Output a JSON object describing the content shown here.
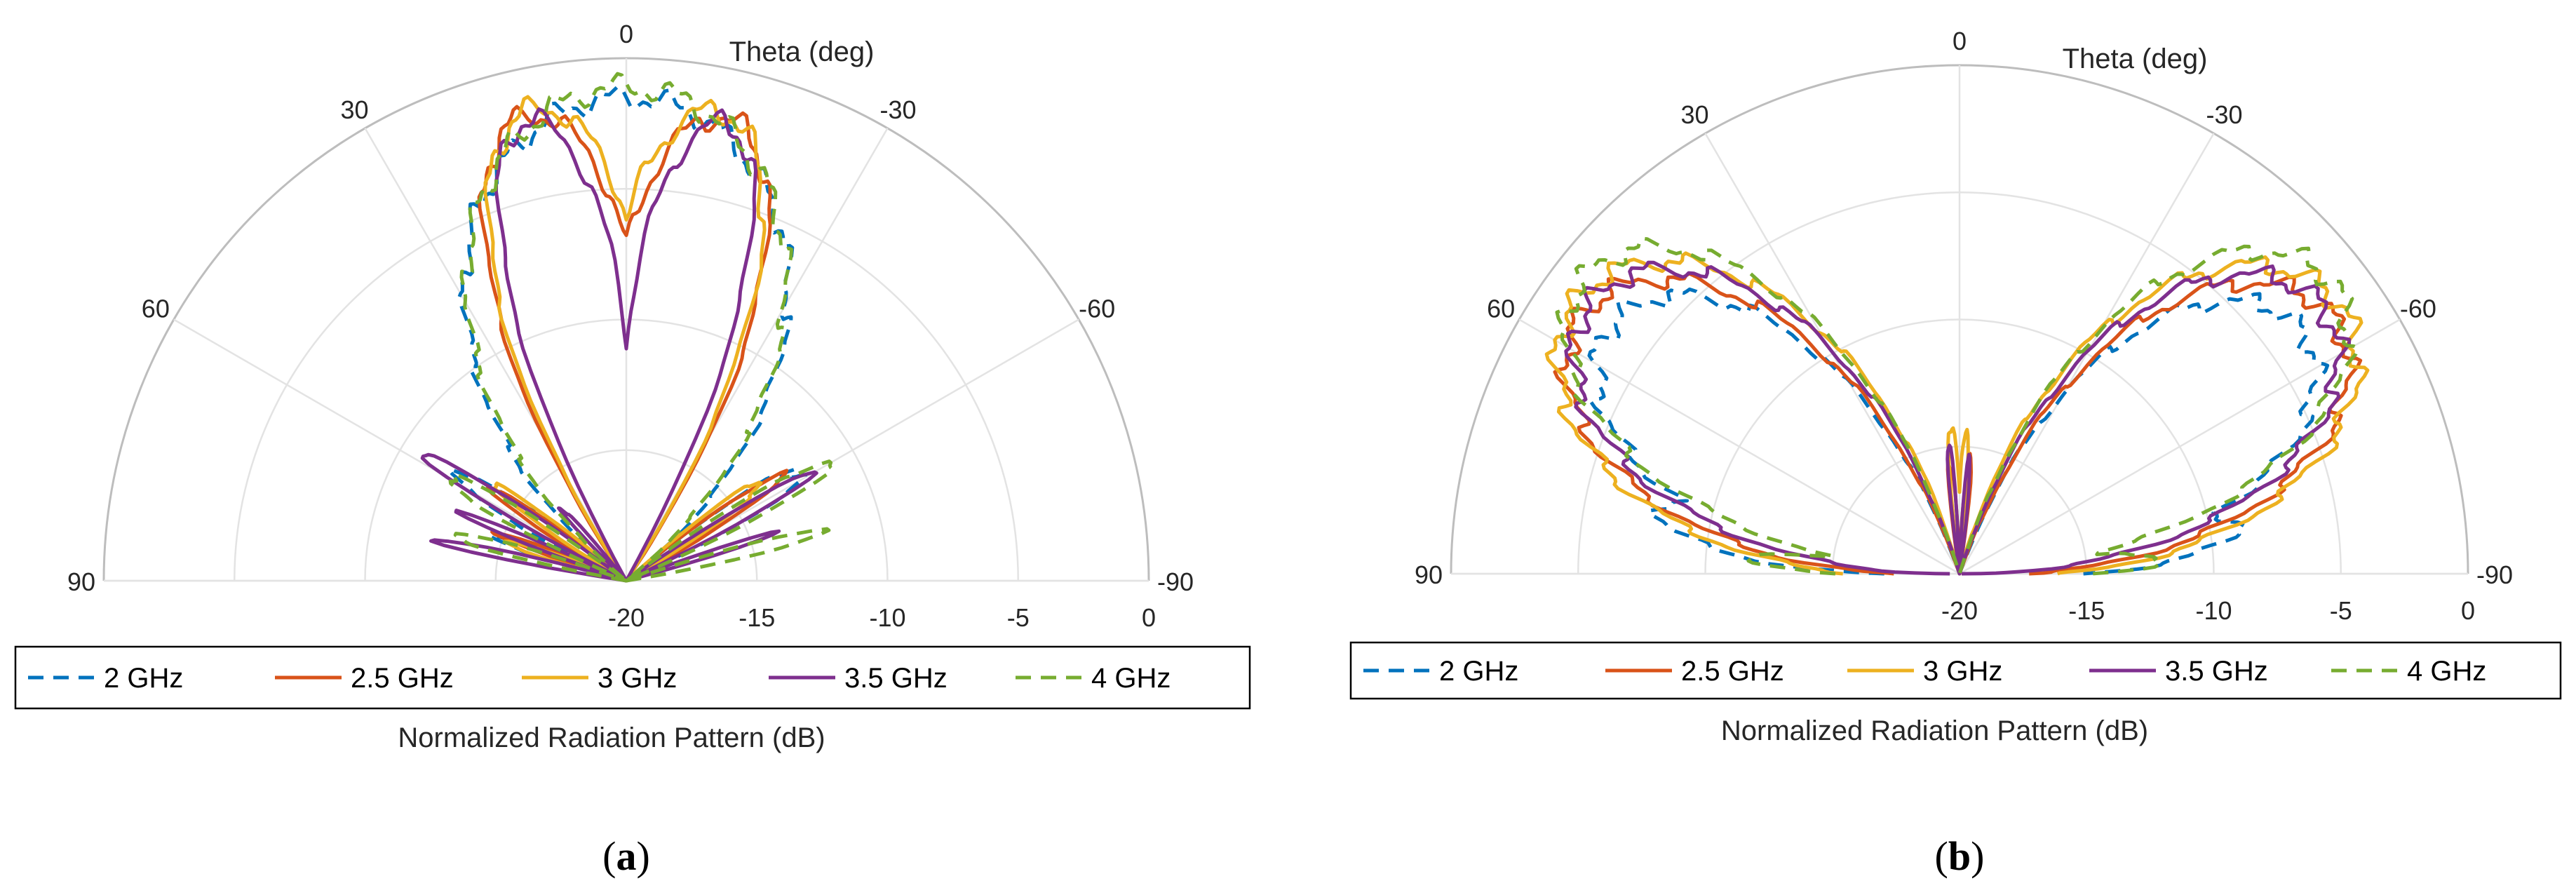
{
  "chart_data": [
    {
      "type": "polar",
      "panel_label": "a",
      "title": "",
      "theta_label": "Theta (deg)",
      "r_label": "Normalized Radiation Pattern (dB)",
      "theta_range": [
        -90,
        90
      ],
      "theta_ticks": [
        90,
        60,
        30,
        0,
        -30,
        -60,
        -90
      ],
      "r_range": [
        -20,
        0
      ],
      "r_ticks": [
        -20,
        -15,
        -10,
        -5,
        0
      ],
      "series": [
        {
          "name": "2 GHz",
          "color": "#0072BD",
          "dash": "dashed",
          "lobes": [
            {
              "center": 0,
              "width": 21,
              "peak": -1.5
            },
            {
              "center": 58,
              "width": 5,
              "peak": -12.5
            },
            {
              "center": -58,
              "width": 5,
              "peak": -12
            },
            {
              "center": 72,
              "width": 4,
              "peak": -15
            }
          ]
        },
        {
          "name": "2.5 GHz",
          "color": "#D95319",
          "dash": "solid",
          "lobes": [
            {
              "center": 12,
              "width": 9,
              "peak": -1.8
            },
            {
              "center": -12,
              "width": 9,
              "peak": -1.9
            },
            {
              "center": 56,
              "width": 4,
              "peak": -14
            },
            {
              "center": -56,
              "width": 4,
              "peak": -13
            },
            {
              "center": 70,
              "width": 3,
              "peak": -15
            }
          ]
        },
        {
          "name": "3 GHz",
          "color": "#EDB120",
          "dash": "solid",
          "lobes": [
            {
              "center": 11,
              "width": 9,
              "peak": -1.6
            },
            {
              "center": -11,
              "width": 9,
              "peak": -1.7
            },
            {
              "center": 54,
              "width": 4,
              "peak": -14
            },
            {
              "center": -54,
              "width": 4,
              "peak": -13.5
            },
            {
              "center": 72,
              "width": 3,
              "peak": -15
            }
          ]
        },
        {
          "name": "3.5 GHz",
          "color": "#7E2F8E",
          "dash": "solid",
          "lobes": [
            {
              "center": 12,
              "width": 7,
              "peak": -2
            },
            {
              "center": -12,
              "width": 7,
              "peak": -2.1
            },
            {
              "center": 1,
              "width": 2,
              "peak": -13
            },
            {
              "center": 42,
              "width": 3,
              "peak": -16
            },
            {
              "center": 58,
              "width": 3,
              "peak": -11
            },
            {
              "center": -60,
              "width": 3,
              "peak": -12
            },
            {
              "center": 68,
              "width": 2,
              "peak": -13
            },
            {
              "center": -72,
              "width": 2,
              "peak": -14
            },
            {
              "center": 78,
              "width": 2,
              "peak": -12.5
            }
          ]
        },
        {
          "name": "4 GHz",
          "color": "#77AC30",
          "dash": "dashed",
          "lobes": [
            {
              "center": 0,
              "width": 20,
              "peak": -1.1
            },
            {
              "center": 60,
              "width": 4,
              "peak": -12
            },
            {
              "center": -60,
              "width": 4,
              "peak": -11
            },
            {
              "center": 75,
              "width": 3,
              "peak": -13
            },
            {
              "center": -76,
              "width": 3,
              "peak": -12.5
            }
          ]
        }
      ]
    },
    {
      "type": "polar",
      "panel_label": "b",
      "title": "",
      "theta_label": "Theta (deg)",
      "r_label": "Normalized Radiation Pattern (dB)",
      "theta_range": [
        -90,
        90
      ],
      "theta_ticks": [
        90,
        60,
        30,
        0,
        -30,
        -60,
        -90
      ],
      "r_range": [
        -20,
        0
      ],
      "r_ticks": [
        -20,
        -15,
        -10,
        -5,
        0
      ],
      "series": [
        {
          "name": "2 GHz",
          "color": "#0072BD",
          "dash": "dashed",
          "lobes": [
            {
              "center": 55,
              "width": 15,
              "peak": -3.2
            },
            {
              "center": -55,
              "width": 15,
              "peak": -3.5
            },
            {
              "center": 78,
              "width": 7,
              "peak": -8
            },
            {
              "center": -80,
              "width": 7,
              "peak": -9
            }
          ]
        },
        {
          "name": "2.5 GHz",
          "color": "#D95319",
          "dash": "solid",
          "lobes": [
            {
              "center": 56,
              "width": 15,
              "peak": -2
            },
            {
              "center": -56,
              "width": 15,
              "peak": -2.2
            },
            {
              "center": 5,
              "width": 3,
              "peak": -15.5
            },
            {
              "center": -5,
              "width": 3,
              "peak": -15.5
            },
            {
              "center": 78,
              "width": 5,
              "peak": -10
            },
            {
              "center": -78,
              "width": 5,
              "peak": -11
            }
          ]
        },
        {
          "name": "3 GHz",
          "color": "#EDB120",
          "dash": "solid",
          "lobes": [
            {
              "center": 55,
              "width": 16,
              "peak": -1.5
            },
            {
              "center": -55,
              "width": 16,
              "peak": -1.7
            },
            {
              "center": 3,
              "width": 3,
              "peak": -14
            },
            {
              "center": -3,
              "width": 3,
              "peak": -14.5
            },
            {
              "center": 84,
              "width": 4,
              "peak": -13
            },
            {
              "center": -84,
              "width": 4,
              "peak": -13
            }
          ]
        },
        {
          "name": "3.5 GHz",
          "color": "#7E2F8E",
          "dash": "solid",
          "lobes": [
            {
              "center": 54,
              "width": 15,
              "peak": -2
            },
            {
              "center": -54,
              "width": 15,
              "peak": -2.3
            },
            {
              "center": 5,
              "width": 2.5,
              "peak": -15
            },
            {
              "center": -5,
              "width": 2.5,
              "peak": -15.5
            },
            {
              "center": 72,
              "width": 5,
              "peak": -9
            },
            {
              "center": -72,
              "width": 5,
              "peak": -9.5
            },
            {
              "center": 82,
              "width": 3,
              "peak": -13
            }
          ]
        },
        {
          "name": "4 GHz",
          "color": "#77AC30",
          "dash": "dashed",
          "lobes": [
            {
              "center": 52,
              "width": 14,
              "peak": -1.2
            },
            {
              "center": -52,
              "width": 14,
              "peak": -1.4
            },
            {
              "center": 72,
              "width": 8,
              "peak": -10
            },
            {
              "center": -72,
              "width": 8,
              "peak": -10.5
            },
            {
              "center": 86,
              "width": 4,
              "peak": -12
            },
            {
              "center": -86,
              "width": 4,
              "peak": -12
            }
          ]
        }
      ]
    }
  ],
  "captions": [
    "(a)",
    "(b)"
  ]
}
